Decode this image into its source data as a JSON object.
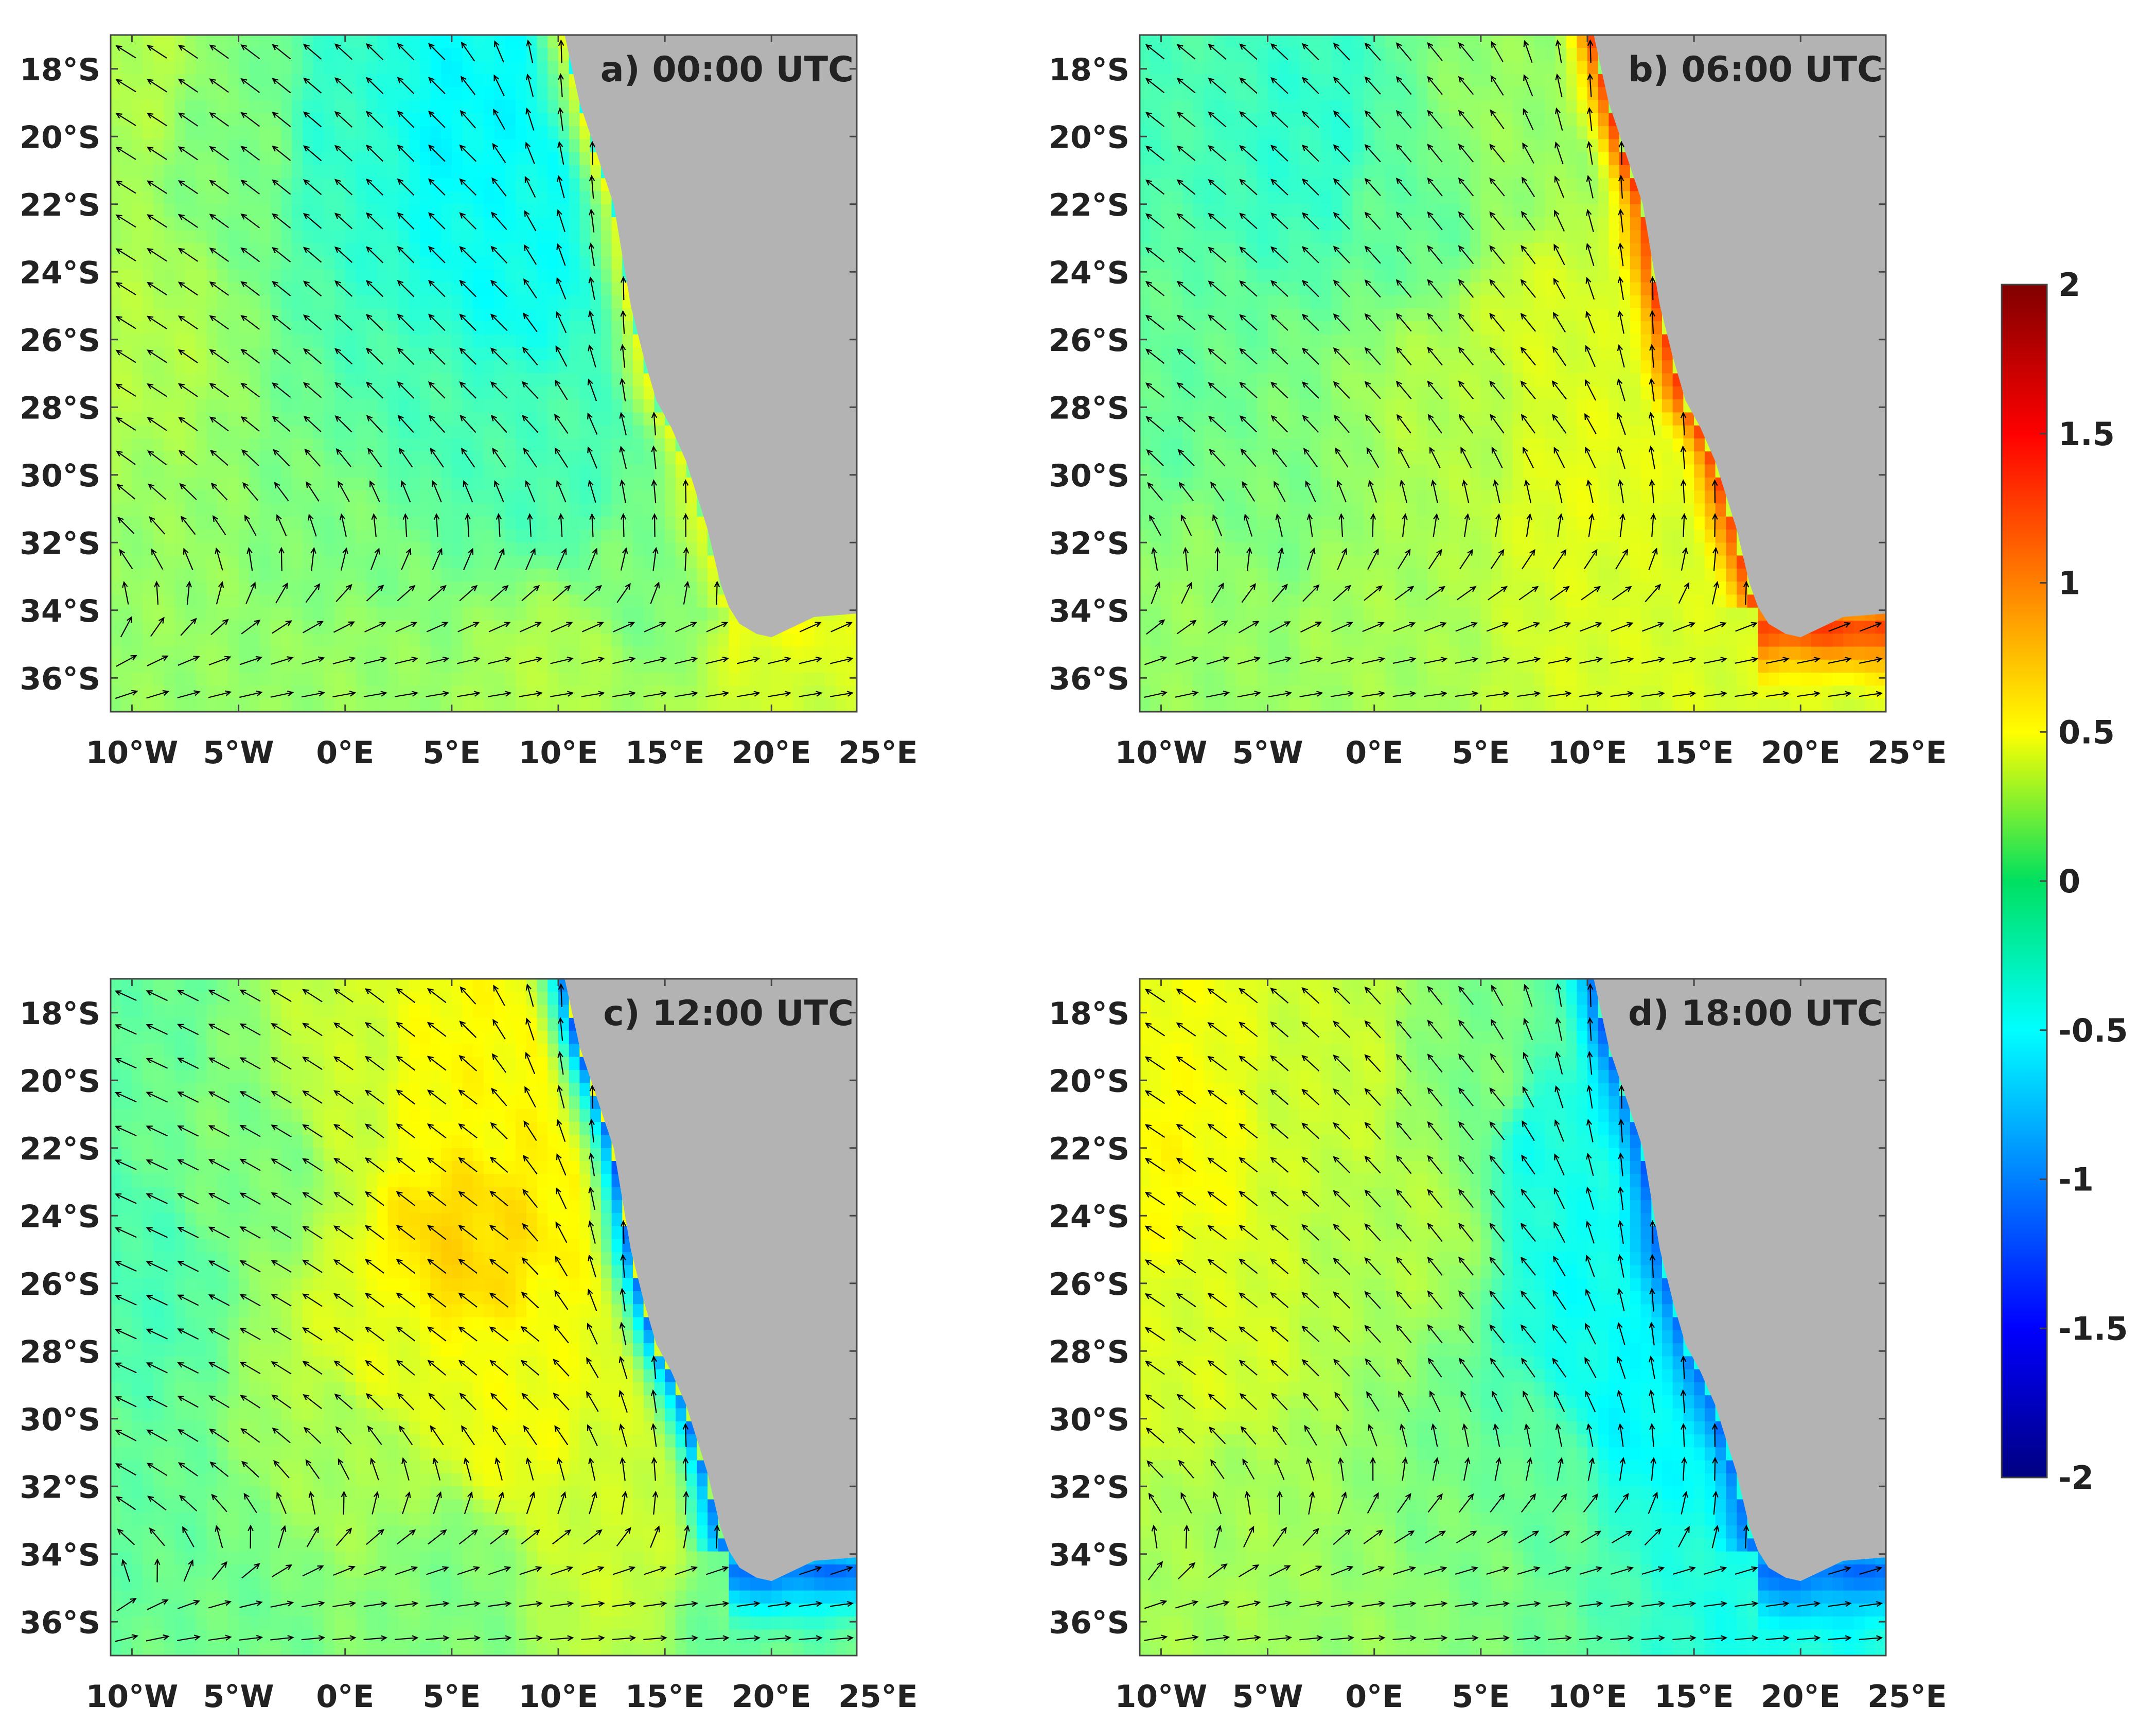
{
  "figure": {
    "colorbar": {
      "min": -2,
      "max": 2,
      "ticks": [
        "2",
        "1.5",
        "1",
        "0.5",
        "0",
        "-0.5",
        "-1",
        "-1.5",
        "-2"
      ],
      "colormap": "jet"
    },
    "land_color": "#b3b3b3"
  },
  "chart_data": [
    {
      "type": "heatmap",
      "title": "a) 00:00 UTC",
      "xlim": [
        -11,
        24
      ],
      "ylim": [
        -37,
        -17
      ],
      "x_ticks": [
        -10,
        -5,
        0,
        5,
        10,
        15,
        20,
        25
      ],
      "x_tick_labels": [
        "10°W",
        "5°W",
        "0°E",
        "5°E",
        "10°E",
        "15°E",
        "20°E",
        "25°E"
      ],
      "y_ticks": [
        -18,
        -20,
        -22,
        -24,
        -26,
        -28,
        -30,
        -32,
        -34,
        -36
      ],
      "y_tick_labels": [
        "18°S",
        "20°S",
        "22°S",
        "24°S",
        "26°S",
        "28°S",
        "30°S",
        "32°S",
        "34°S",
        "36°S"
      ],
      "field_description": "Coastal positive anomaly and cool open ocean",
      "anchors": [
        {
          "lon": -10,
          "lat": -18,
          "v": 0.2
        },
        {
          "lon": -10,
          "lat": -26,
          "v": 0.2
        },
        {
          "lon": -9,
          "lat": -33,
          "v": 0.1
        },
        {
          "lon": -5,
          "lat": -20,
          "v": 0.0
        },
        {
          "lon": 0,
          "lat": -20,
          "v": -0.3
        },
        {
          "lon": 5,
          "lat": -20,
          "v": -0.5
        },
        {
          "lon": 7,
          "lat": -24,
          "v": -0.45
        },
        {
          "lon": 4,
          "lat": -28,
          "v": -0.2
        },
        {
          "lon": 0,
          "lat": -32,
          "v": 0.0
        },
        {
          "lon": 10,
          "lat": -30,
          "v": -0.2
        },
        {
          "lon": 14,
          "lat": -33,
          "v": 0.0
        },
        {
          "lon": 10,
          "lat": -36,
          "v": 0.2
        },
        {
          "lon": 20,
          "lat": -36,
          "v": 0.3
        },
        {
          "lon": 0,
          "lat": -36,
          "v": 0.1
        }
      ],
      "coastal_anomaly": 0.45,
      "wind_pattern": "offshore-north"
    },
    {
      "type": "heatmap",
      "title": "b) 06:00 UTC",
      "xlim": [
        -11,
        24
      ],
      "ylim": [
        -37,
        -17
      ],
      "x_ticks": [
        -10,
        -5,
        0,
        5,
        10,
        15,
        20,
        25
      ],
      "x_tick_labels": [
        "10°W",
        "5°W",
        "0°E",
        "5°E",
        "10°E",
        "15°E",
        "20°E",
        "25°E"
      ],
      "y_ticks": [
        -18,
        -20,
        -22,
        -24,
        -26,
        -28,
        -30,
        -32,
        -34,
        -36
      ],
      "y_tick_labels": [
        "18°S",
        "20°S",
        "22°S",
        "24°S",
        "26°S",
        "28°S",
        "30°S",
        "32°S",
        "34°S",
        "36°S"
      ],
      "field_description": "Strong warm coastal anomaly",
      "anchors": [
        {
          "lon": -10,
          "lat": -18,
          "v": -0.2
        },
        {
          "lon": -10,
          "lat": -28,
          "v": -0.1
        },
        {
          "lon": -8,
          "lat": -34,
          "v": 0.1
        },
        {
          "lon": -3,
          "lat": -20,
          "v": -0.3
        },
        {
          "lon": 2,
          "lat": -22,
          "v": -0.1
        },
        {
          "lon": 6,
          "lat": -20,
          "v": 0.1
        },
        {
          "lon": 4,
          "lat": -28,
          "v": 0.2
        },
        {
          "lon": 8,
          "lat": -26,
          "v": 0.35
        },
        {
          "lon": 10,
          "lat": -30,
          "v": 0.4
        },
        {
          "lon": 12,
          "lat": -34,
          "v": 0.35
        },
        {
          "lon": 0,
          "lat": -34,
          "v": 0.15
        },
        {
          "lon": 20,
          "lat": -36,
          "v": 0.35
        },
        {
          "lon": -5,
          "lat": -31,
          "v": 0.0
        }
      ],
      "coastal_anomaly": 1.3,
      "wind_pattern": "onshore-north"
    },
    {
      "type": "heatmap",
      "title": "c) 12:00 UTC",
      "xlim": [
        -11,
        24
      ],
      "ylim": [
        -37,
        -17
      ],
      "x_ticks": [
        -10,
        -5,
        0,
        5,
        10,
        15,
        20,
        25
      ],
      "x_tick_labels": [
        "10°W",
        "5°W",
        "0°E",
        "5°E",
        "10°E",
        "15°E",
        "20°E",
        "25°E"
      ],
      "y_ticks": [
        -18,
        -20,
        -22,
        -24,
        -26,
        -28,
        -30,
        -32,
        -34,
        -36
      ],
      "y_tick_labels": [
        "18°S",
        "20°S",
        "22°S",
        "24°S",
        "26°S",
        "28°S",
        "30°S",
        "32°S",
        "34°S",
        "36°S"
      ],
      "field_description": "Warm open ocean, cool coastal anomaly",
      "anchors": [
        {
          "lon": -10,
          "lat": -18,
          "v": -0.1
        },
        {
          "lon": -10,
          "lat": -26,
          "v": -0.2
        },
        {
          "lon": -10,
          "lat": -33,
          "v": -0.1
        },
        {
          "lon": -4,
          "lat": -22,
          "v": 0.0
        },
        {
          "lon": 0,
          "lat": -20,
          "v": 0.3
        },
        {
          "lon": 5,
          "lat": -20,
          "v": 0.5
        },
        {
          "lon": 5,
          "lat": -25,
          "v": 0.65
        },
        {
          "lon": 2,
          "lat": -28,
          "v": 0.4
        },
        {
          "lon": 8,
          "lat": -30,
          "v": 0.45
        },
        {
          "lon": 0,
          "lat": -31,
          "v": 0.15
        },
        {
          "lon": 12,
          "lat": -33,
          "v": 0.3
        },
        {
          "lon": 5,
          "lat": -35,
          "v": 0.0
        },
        {
          "lon": 20,
          "lat": -36,
          "v": -0.1
        },
        {
          "lon": -5,
          "lat": -36,
          "v": -0.05
        }
      ],
      "coastal_anomaly": -1.1,
      "wind_pattern": "offshore-strong"
    },
    {
      "type": "heatmap",
      "title": "d) 18:00 UTC",
      "xlim": [
        -11,
        24
      ],
      "ylim": [
        -37,
        -17
      ],
      "x_ticks": [
        -10,
        -5,
        0,
        5,
        10,
        15,
        20,
        25
      ],
      "x_tick_labels": [
        "10°W",
        "5°W",
        "0°E",
        "5°E",
        "10°E",
        "15°E",
        "20°E",
        "25°E"
      ],
      "y_ticks": [
        -18,
        -20,
        -22,
        -24,
        -26,
        -28,
        -30,
        -32,
        -34,
        -36
      ],
      "y_tick_labels": [
        "18°S",
        "20°S",
        "22°S",
        "24°S",
        "26°S",
        "28°S",
        "30°S",
        "32°S",
        "34°S",
        "36°S"
      ],
      "field_description": "Warm west, cool east and coast",
      "anchors": [
        {
          "lon": -10,
          "lat": -18,
          "v": 0.45
        },
        {
          "lon": -10,
          "lat": -22,
          "v": 0.5
        },
        {
          "lon": -8,
          "lat": -28,
          "v": 0.35
        },
        {
          "lon": -6,
          "lat": -33,
          "v": 0.15
        },
        {
          "lon": -2,
          "lat": -20,
          "v": 0.3
        },
        {
          "lon": 2,
          "lat": -24,
          "v": 0.2
        },
        {
          "lon": 5,
          "lat": -20,
          "v": 0.0
        },
        {
          "lon": 8,
          "lat": -22,
          "v": -0.4
        },
        {
          "lon": 10,
          "lat": -26,
          "v": -0.45
        },
        {
          "lon": 8,
          "lat": -32,
          "v": -0.1
        },
        {
          "lon": 12,
          "lat": -30,
          "v": -0.5
        },
        {
          "lon": 4,
          "lat": -34,
          "v": 0.0
        },
        {
          "lon": 20,
          "lat": -36,
          "v": -0.4
        },
        {
          "lon": 0,
          "lat": -36,
          "v": 0.1
        }
      ],
      "coastal_anomaly": -1.1,
      "wind_pattern": "onshore-weak"
    }
  ]
}
